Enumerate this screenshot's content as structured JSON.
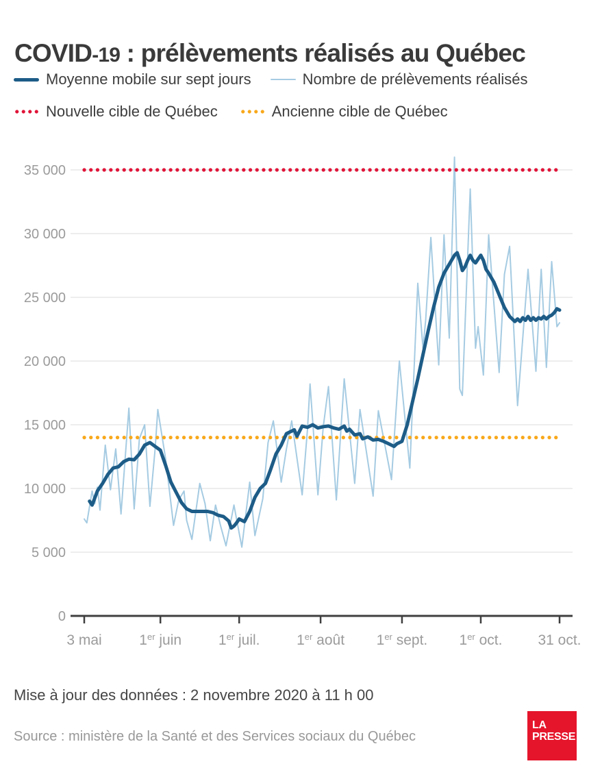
{
  "title": {
    "covid": "COVID",
    "num": "-19",
    "rest": " : prélèvements réalisés au Québec"
  },
  "legend": {
    "row1": [
      {
        "label": "Moyenne mobile sur sept jours",
        "color": "#1d5c87",
        "style": "solid",
        "thickness": 5
      },
      {
        "label": "Nombre de prélèvements réalisés",
        "color": "#a5cbe2",
        "style": "solid",
        "thickness": 2.5
      }
    ],
    "row2": [
      {
        "label": "Nouvelle cible de Québec",
        "color": "#e01438",
        "style": "dotted"
      },
      {
        "label": "Ancienne cible de Québec",
        "color": "#f8a81b",
        "style": "dotted"
      }
    ]
  },
  "chart_data": {
    "type": "line",
    "title": "COVID-19 : prélèvements réalisés au Québec",
    "xlabel": "",
    "ylabel": "",
    "x_unit": "jours depuis le 3 mai 2020",
    "x_range_days": [
      0,
      181
    ],
    "ylim": [
      0,
      36500
    ],
    "grid": true,
    "legend_position": "top",
    "colors": {
      "average": "#1d5c87",
      "daily": "#a5cbe2",
      "new_target": "#e01438",
      "old_target": "#f8a81b",
      "grid": "#e7e7e7",
      "axis": "#3f3f3f",
      "tick_text": "#9b9b9b"
    },
    "yticks": [
      {
        "value": 0,
        "label": "0"
      },
      {
        "value": 5000,
        "label": "5 000"
      },
      {
        "value": 10000,
        "label": "10 000"
      },
      {
        "value": 15000,
        "label": "15 000"
      },
      {
        "value": 20000,
        "label": "20 000"
      },
      {
        "value": 25000,
        "label": "25 000"
      },
      {
        "value": 30000,
        "label": "30 000"
      },
      {
        "value": 35000,
        "label": "35 000"
      }
    ],
    "xticks": [
      {
        "day": 0,
        "pre": "3 mai",
        "sup": "",
        "post": ""
      },
      {
        "day": 29,
        "pre": "1",
        "sup": "er",
        "post": " juin"
      },
      {
        "day": 59,
        "pre": "1",
        "sup": "er",
        "post": " juil."
      },
      {
        "day": 90,
        "pre": "1",
        "sup": "er",
        "post": " août"
      },
      {
        "day": 121,
        "pre": "1",
        "sup": "er",
        "post": " sept."
      },
      {
        "day": 151,
        "pre": "1",
        "sup": "er",
        "post": " oct."
      },
      {
        "day": 181,
        "pre": "31 oct.",
        "sup": "",
        "post": ""
      }
    ],
    "targets": [
      {
        "name": "Nouvelle cible de Québec",
        "value": 35000,
        "color": "#e01438"
      },
      {
        "name": "Ancienne cible de Québec",
        "value": 14000,
        "color": "#f8a81b"
      }
    ],
    "series": [
      {
        "name": "Moyenne mobile sur sept jours",
        "color": "#1d5c87",
        "width": 5,
        "points": [
          [
            2,
            9000
          ],
          [
            3,
            8700
          ],
          [
            5,
            9800
          ],
          [
            7,
            10400
          ],
          [
            9,
            11100
          ],
          [
            11,
            11600
          ],
          [
            13,
            11700
          ],
          [
            15,
            12100
          ],
          [
            17,
            12300
          ],
          [
            19,
            12250
          ],
          [
            21,
            12700
          ],
          [
            23,
            13400
          ],
          [
            25,
            13600
          ],
          [
            27,
            13300
          ],
          [
            29,
            13000
          ],
          [
            31,
            11800
          ],
          [
            33,
            10500
          ],
          [
            35,
            9700
          ],
          [
            37,
            8900
          ],
          [
            39,
            8400
          ],
          [
            41,
            8200
          ],
          [
            44,
            8200
          ],
          [
            47,
            8200
          ],
          [
            49,
            8100
          ],
          [
            51,
            7900
          ],
          [
            53,
            7800
          ],
          [
            55,
            7450
          ],
          [
            56,
            6900
          ],
          [
            57,
            7050
          ],
          [
            58,
            7300
          ],
          [
            59,
            7600
          ],
          [
            61,
            7400
          ],
          [
            63,
            8200
          ],
          [
            65,
            9300
          ],
          [
            67,
            10000
          ],
          [
            69,
            10400
          ],
          [
            71,
            11500
          ],
          [
            73,
            12700
          ],
          [
            75,
            13400
          ],
          [
            77,
            14300
          ],
          [
            80,
            14600
          ],
          [
            81,
            14100
          ],
          [
            83,
            14900
          ],
          [
            85,
            14800
          ],
          [
            87,
            15000
          ],
          [
            89,
            14750
          ],
          [
            91,
            14850
          ],
          [
            93,
            14900
          ],
          [
            95,
            14750
          ],
          [
            97,
            14650
          ],
          [
            99,
            14900
          ],
          [
            100,
            14500
          ],
          [
            101,
            14650
          ],
          [
            103,
            14200
          ],
          [
            105,
            14300
          ],
          [
            106,
            13900
          ],
          [
            108,
            14050
          ],
          [
            110,
            13800
          ],
          [
            112,
            13850
          ],
          [
            114,
            13700
          ],
          [
            116,
            13500
          ],
          [
            118,
            13300
          ],
          [
            119,
            13500
          ],
          [
            121,
            13700
          ],
          [
            123,
            15000
          ],
          [
            125,
            16800
          ],
          [
            127,
            18600
          ],
          [
            129,
            20500
          ],
          [
            131,
            22400
          ],
          [
            133,
            24200
          ],
          [
            135,
            25800
          ],
          [
            137,
            26900
          ],
          [
            139,
            27600
          ],
          [
            141,
            28300
          ],
          [
            142,
            28500
          ],
          [
            143,
            27900
          ],
          [
            144,
            27100
          ],
          [
            145,
            27400
          ],
          [
            146,
            27900
          ],
          [
            147,
            28300
          ],
          [
            148,
            27900
          ],
          [
            149,
            27700
          ],
          [
            150,
            28000
          ],
          [
            151,
            28300
          ],
          [
            152,
            27900
          ],
          [
            153,
            27200
          ],
          [
            154,
            26900
          ],
          [
            156,
            26200
          ],
          [
            158,
            25200
          ],
          [
            160,
            24200
          ],
          [
            162,
            23500
          ],
          [
            164,
            23100
          ],
          [
            165,
            23300
          ],
          [
            166,
            23100
          ],
          [
            167,
            23400
          ],
          [
            168,
            23200
          ],
          [
            169,
            23500
          ],
          [
            170,
            23200
          ],
          [
            171,
            23400
          ],
          [
            172,
            23200
          ],
          [
            173,
            23400
          ],
          [
            174,
            23300
          ],
          [
            175,
            23500
          ],
          [
            176,
            23300
          ],
          [
            177,
            23500
          ],
          [
            178,
            23600
          ],
          [
            179,
            23800
          ],
          [
            180,
            24100
          ],
          [
            181,
            24000
          ]
        ]
      },
      {
        "name": "Nombre de prélèvements réalisés",
        "color": "#a5cbe2",
        "width": 2,
        "points": [
          [
            0,
            7600
          ],
          [
            1,
            7300
          ],
          [
            3,
            9800
          ],
          [
            4,
            8800
          ],
          [
            5,
            10100
          ],
          [
            6,
            8300
          ],
          [
            8,
            13400
          ],
          [
            10,
            9900
          ],
          [
            12,
            13100
          ],
          [
            14,
            8000
          ],
          [
            17,
            16300
          ],
          [
            19,
            8400
          ],
          [
            21,
            13900
          ],
          [
            23,
            15000
          ],
          [
            25,
            8600
          ],
          [
            27,
            13100
          ],
          [
            28,
            16200
          ],
          [
            31,
            12300
          ],
          [
            34,
            7100
          ],
          [
            36,
            9100
          ],
          [
            38,
            9800
          ],
          [
            39,
            7500
          ],
          [
            41,
            6000
          ],
          [
            44,
            10400
          ],
          [
            46,
            8800
          ],
          [
            48,
            5900
          ],
          [
            50,
            8700
          ],
          [
            52,
            7000
          ],
          [
            54,
            5500
          ],
          [
            57,
            8700
          ],
          [
            59,
            6500
          ],
          [
            60,
            5400
          ],
          [
            63,
            10500
          ],
          [
            65,
            6300
          ],
          [
            68,
            9200
          ],
          [
            70,
            13600
          ],
          [
            72,
            15300
          ],
          [
            75,
            10500
          ],
          [
            77,
            13100
          ],
          [
            79,
            15300
          ],
          [
            83,
            9500
          ],
          [
            85,
            14600
          ],
          [
            86,
            18200
          ],
          [
            89,
            9500
          ],
          [
            91,
            14800
          ],
          [
            93,
            18000
          ],
          [
            96,
            9100
          ],
          [
            99,
            18600
          ],
          [
            103,
            10400
          ],
          [
            105,
            16200
          ],
          [
            110,
            9400
          ],
          [
            112,
            16100
          ],
          [
            117,
            10700
          ],
          [
            120,
            20000
          ],
          [
            124,
            11600
          ],
          [
            127,
            26100
          ],
          [
            129,
            21000
          ],
          [
            130,
            23200
          ],
          [
            132,
            29700
          ],
          [
            135,
            19700
          ],
          [
            137,
            29900
          ],
          [
            139,
            21800
          ],
          [
            141,
            36000
          ],
          [
            143,
            17800
          ],
          [
            144,
            17300
          ],
          [
            147,
            33500
          ],
          [
            149,
            21000
          ],
          [
            150,
            22700
          ],
          [
            152,
            18900
          ],
          [
            154,
            29900
          ],
          [
            158,
            19100
          ],
          [
            160,
            26800
          ],
          [
            162,
            29000
          ],
          [
            165,
            16500
          ],
          [
            169,
            27200
          ],
          [
            172,
            19200
          ],
          [
            174,
            27200
          ],
          [
            176,
            19500
          ],
          [
            178,
            27800
          ],
          [
            180,
            22700
          ],
          [
            181,
            23000
          ]
        ]
      }
    ]
  },
  "footer": {
    "updated": "Mise à jour des données : 2 novembre 2020 à 11 h 00",
    "source": "Source : ministère de la Santé et des Services sociaux du Québec",
    "logo": {
      "line1": "LA",
      "line2": "PRESSE",
      "color": "#e5152b"
    }
  }
}
